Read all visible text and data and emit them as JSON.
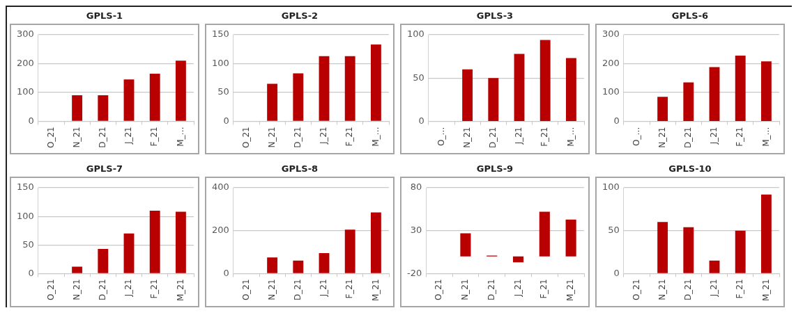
{
  "chart_data": [
    {
      "type": "bar",
      "title": "GPLS-1",
      "categories": [
        "O_21",
        "N_21",
        "D_21",
        "J_21",
        "F_21",
        "M_…"
      ],
      "series": [
        {
          "color": "#b80000",
          "values": [
            null,
            90,
            90,
            145,
            165,
            210
          ]
        }
      ],
      "ylim": [
        0,
        300
      ],
      "yticks": [
        0,
        100,
        200,
        300
      ],
      "grid": "y",
      "legend": false
    },
    {
      "type": "bar",
      "title": "GPLS-2",
      "categories": [
        "O_21",
        "N_21",
        "D_21",
        "J_21",
        "F_21",
        "M_…"
      ],
      "series": [
        {
          "color": "#b80000",
          "values": [
            null,
            65,
            83,
            113,
            113,
            133
          ]
        }
      ],
      "ylim": [
        0,
        150
      ],
      "yticks": [
        0,
        50,
        100,
        150
      ],
      "grid": "y",
      "legend": false
    },
    {
      "type": "bar",
      "title": "GPLS-3",
      "categories": [
        "O_…",
        "N_21",
        "D_21",
        "J_21",
        "F_21",
        "M_…"
      ],
      "series": [
        {
          "color": "#b80000",
          "values": [
            null,
            60,
            50,
            78,
            94,
            73
          ]
        }
      ],
      "ylim": [
        0,
        100
      ],
      "yticks": [
        0,
        50,
        100
      ],
      "grid": "y",
      "legend": false
    },
    {
      "type": "bar",
      "title": "GPLS-6",
      "categories": [
        "O_…",
        "N_21",
        "D_21",
        "J_21",
        "F_21",
        "M_…"
      ],
      "series": [
        {
          "color": "#b80000",
          "values": [
            null,
            85,
            135,
            188,
            228,
            208
          ]
        }
      ],
      "ylim": [
        0,
        300
      ],
      "yticks": [
        0,
        100,
        200,
        300
      ],
      "grid": "y",
      "legend": false
    },
    {
      "type": "bar",
      "title": "GPLS-7",
      "categories": [
        "O_21",
        "N_21",
        "D_21",
        "J_21",
        "F_21",
        "M_21"
      ],
      "series": [
        {
          "color": "#b80000",
          "values": [
            null,
            12,
            43,
            70,
            110,
            108
          ]
        }
      ],
      "ylim": [
        0,
        150
      ],
      "yticks": [
        0,
        50,
        100,
        150
      ],
      "grid": "y",
      "legend": false
    },
    {
      "type": "bar",
      "title": "GPLS-8",
      "categories": [
        "O_21",
        "N_21",
        "D_21",
        "J_21",
        "F_21",
        "M_21"
      ],
      "series": [
        {
          "color": "#b80000",
          "values": [
            null,
            75,
            60,
            95,
            205,
            285
          ]
        }
      ],
      "ylim": [
        0,
        400
      ],
      "yticks": [
        0,
        200,
        400
      ],
      "grid": "y",
      "legend": false
    },
    {
      "type": "bar",
      "title": "GPLS-9",
      "categories": [
        "O_21",
        "N_21",
        "D_21",
        "J_21",
        "F_21",
        "M_21"
      ],
      "series": [
        {
          "color": "#b80000",
          "values": [
            null,
            27,
            1,
            -7,
            52,
            43
          ]
        }
      ],
      "ylim": [
        -20,
        80
      ],
      "yticks": [
        -20,
        30,
        80
      ],
      "grid": "y",
      "legend": false
    },
    {
      "type": "bar",
      "title": "GPLS-10",
      "categories": [
        "O_21",
        "N_21",
        "D_21",
        "J_21",
        "F_21",
        "M_21"
      ],
      "series": [
        {
          "color": "#b80000",
          "values": [
            null,
            60,
            54,
            15,
            50,
            92
          ]
        }
      ],
      "ylim": [
        0,
        100
      ],
      "yticks": [
        0,
        50,
        100
      ],
      "grid": "y",
      "legend": false
    }
  ]
}
